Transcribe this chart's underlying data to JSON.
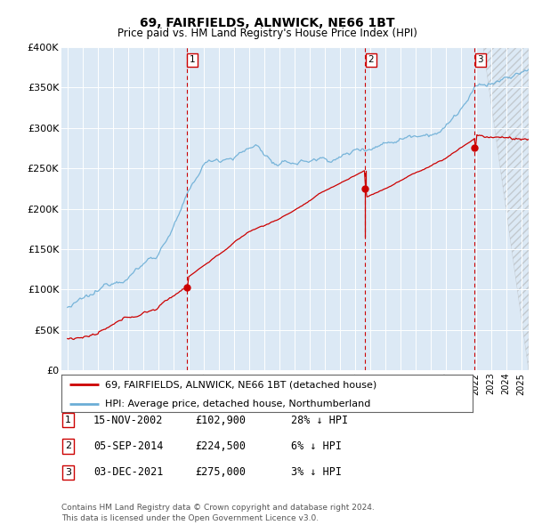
{
  "title": "69, FAIRFIELDS, ALNWICK, NE66 1BT",
  "subtitle": "Price paid vs. HM Land Registry's House Price Index (HPI)",
  "bg_color": "#dce9f5",
  "hpi_color": "#6baed6",
  "price_color": "#cc0000",
  "vline_color": "#cc0000",
  "ylim": [
    0,
    400000
  ],
  "yticks": [
    0,
    50000,
    100000,
    150000,
    200000,
    250000,
    300000,
    350000,
    400000
  ],
  "ytick_labels": [
    "£0",
    "£50K",
    "£100K",
    "£150K",
    "£200K",
    "£250K",
    "£300K",
    "£350K",
    "£400K"
  ],
  "transactions": [
    {
      "label": "1",
      "date_str": "15-NOV-2002",
      "date_num": 2002.88,
      "price": 102900,
      "pct": "28% ↓ HPI"
    },
    {
      "label": "2",
      "date_str": "05-SEP-2014",
      "date_num": 2014.67,
      "price": 224500,
      "pct": "6% ↓ HPI"
    },
    {
      "label": "3",
      "date_str": "03-DEC-2021",
      "date_num": 2021.92,
      "price": 275000,
      "pct": "3% ↓ HPI"
    }
  ],
  "legend_line1": "69, FAIRFIELDS, ALNWICK, NE66 1BT (detached house)",
  "legend_line2": "HPI: Average price, detached house, Northumberland",
  "footer": "Contains HM Land Registry data © Crown copyright and database right 2024.\nThis data is licensed under the Open Government Licence v3.0.",
  "xlim_start": 1994.6,
  "xlim_end": 2025.5
}
